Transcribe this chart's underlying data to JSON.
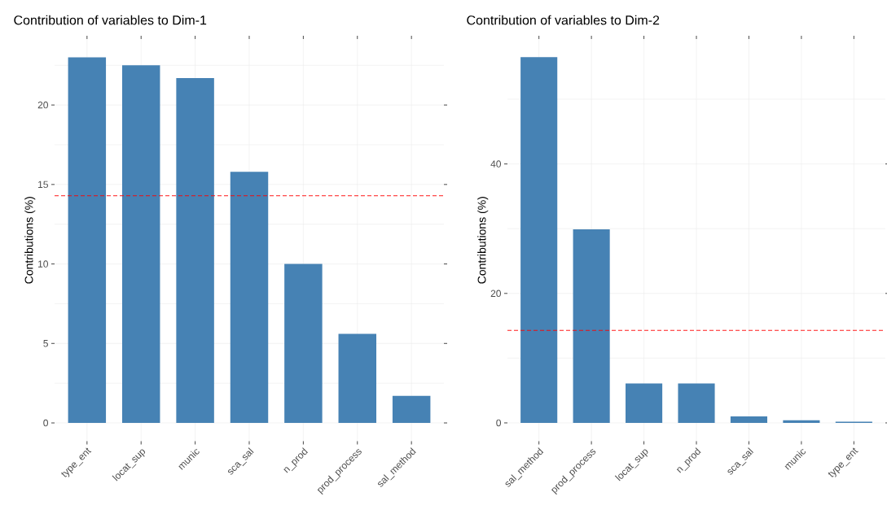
{
  "chart_data": [
    {
      "type": "bar",
      "title": "Contribution of variables to Dim-1",
      "ylabel": "Contributions (%)",
      "categories": [
        "type_ent",
        "locat_sup",
        "munic",
        "sca_sal",
        "n_prod",
        "prod_process",
        "sal_method"
      ],
      "values": [
        23.0,
        22.5,
        21.7,
        15.8,
        10.0,
        5.6,
        1.7
      ],
      "color": "#4682b4",
      "ylim": [
        -1.15,
        24.15
      ],
      "yticks": [
        0,
        5,
        10,
        15,
        20
      ],
      "grid": true,
      "ref_lines": [
        {
          "axis": "y",
          "value": 14.29,
          "color": "#ff0000",
          "line_style": "dashed"
        }
      ]
    },
    {
      "type": "bar",
      "title": "Contribution of variables to Dim-2",
      "ylabel": "Contributions (%)",
      "categories": [
        "sal_method",
        "prod_process",
        "locat_sup",
        "n_prod",
        "sca_sal",
        "munic",
        "type_ent"
      ],
      "values": [
        56.5,
        29.9,
        6.1,
        6.1,
        1.0,
        0.4,
        0.2
      ],
      "color": "#4682b4",
      "ylim": [
        -2.83,
        59.3
      ],
      "yticks": [
        0,
        20,
        40
      ],
      "grid": true,
      "ref_lines": [
        {
          "axis": "y",
          "value": 14.29,
          "color": "#ff0000",
          "line_style": "dashed"
        }
      ]
    }
  ]
}
